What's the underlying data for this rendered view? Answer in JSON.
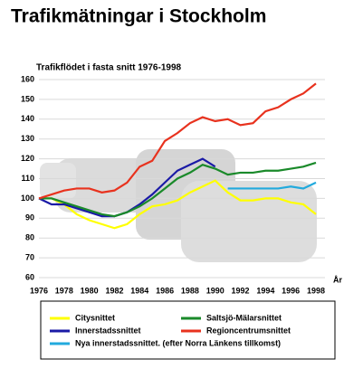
{
  "chart_data": {
    "type": "line",
    "title": "Trafikmätningar i Stockholm",
    "subtitle": "Trafikflödet i fasta snitt 1976-1998",
    "x_label": "År",
    "x": [
      1976,
      1977,
      1978,
      1979,
      1980,
      1981,
      1982,
      1983,
      1984,
      1985,
      1986,
      1987,
      1988,
      1989,
      1990,
      1991,
      1992,
      1993,
      1994,
      1995,
      1996,
      1997,
      1998
    ],
    "xlim": [
      1976,
      1998
    ],
    "xticks": [
      1976,
      1978,
      1980,
      1982,
      1984,
      1986,
      1988,
      1990,
      1992,
      1994,
      1996,
      1998
    ],
    "ylim": [
      60,
      160
    ],
    "yticks": [
      60,
      70,
      80,
      90,
      100,
      110,
      120,
      130,
      140,
      150,
      160
    ],
    "grid": true,
    "series": [
      {
        "name": "Citysnittet",
        "color": "#ffff00",
        "values": [
          100,
          100,
          97,
          92,
          89,
          87,
          85,
          87,
          92,
          96,
          97,
          99,
          103,
          106,
          109,
          103,
          99,
          99,
          100,
          100,
          98,
          97,
          92
        ]
      },
      {
        "name": "Innerstadssnittet",
        "color": "#1a1aa6",
        "values": [
          100,
          97,
          97,
          95,
          93,
          91,
          91,
          93,
          97,
          102,
          108,
          114,
          117,
          120,
          116,
          null,
          null,
          null,
          null,
          null,
          null,
          null,
          null
        ]
      },
      {
        "name": "Nya innerstadssnittet. (efter Norra Länkens tillkomst)",
        "color": "#22aadd",
        "values": [
          null,
          null,
          null,
          null,
          null,
          null,
          null,
          null,
          null,
          null,
          null,
          null,
          null,
          null,
          null,
          105,
          105,
          105,
          105,
          105,
          106,
          105,
          108
        ]
      },
      {
        "name": "Saltsjö-Mälarsnittet",
        "color": "#1a8a2a",
        "values": [
          100,
          100,
          98,
          96,
          94,
          92,
          91,
          93,
          96,
          100,
          105,
          110,
          113,
          117,
          115,
          112,
          113,
          113,
          114,
          114,
          115,
          116,
          118
        ]
      },
      {
        "name": "Regioncentrumsnittet",
        "color": "#e8321e",
        "values": [
          100,
          102,
          104,
          105,
          105,
          103,
          104,
          108,
          116,
          119,
          129,
          133,
          138,
          141,
          139,
          140,
          137,
          138,
          144,
          146,
          150,
          153,
          158
        ]
      }
    ]
  }
}
